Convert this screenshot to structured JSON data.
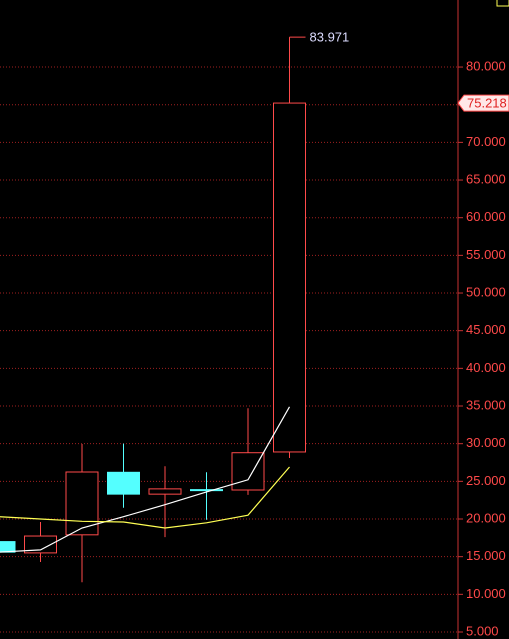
{
  "chart_data": {
    "type": "candlestick",
    "categories": [
      null,
      null,
      null,
      null,
      null,
      null,
      null,
      null
    ],
    "open": [
      17.0,
      15.5,
      17.9,
      26.2,
      23.3,
      23.9,
      23.85,
      28.9
    ],
    "high": [
      17.0,
      19.6,
      29.95,
      30.0,
      27.0,
      26.2,
      34.7,
      83.971
    ],
    "low": [
      15.6,
      14.3,
      11.6,
      21.5,
      17.6,
      19.9,
      23.2,
      28.1
    ],
    "close": [
      15.6,
      17.74,
      26.24,
      23.3,
      24.0,
      23.85,
      28.8,
      75.218
    ],
    "up_color": "#ff4a4a",
    "down_color": "#54ffff",
    "series": [
      {
        "color": "#ffffff",
        "values": [
          15.6,
          15.9,
          18.8,
          20.3,
          21.9,
          23.6,
          25.2,
          34.9
        ]
      },
      {
        "color": "#ffff54",
        "values": [
          20.3,
          20.0,
          19.7,
          19.6,
          18.8,
          19.5,
          20.5,
          26.9
        ]
      }
    ],
    "ylim": [
      4.07,
      88.9
    ],
    "yticks": [
      {
        "value": 5,
        "label": "5.000"
      },
      {
        "value": 10,
        "label": "10.000"
      },
      {
        "value": 15,
        "label": "15.000"
      },
      {
        "value": 20,
        "label": "20.000"
      },
      {
        "value": 25,
        "label": "25.000"
      },
      {
        "value": 30,
        "label": "30.000"
      },
      {
        "value": 35,
        "label": "35.000"
      },
      {
        "value": 40,
        "label": "40.000"
      },
      {
        "value": 45,
        "label": "45.000"
      },
      {
        "value": 50,
        "label": "50.000"
      },
      {
        "value": 55,
        "label": "55.000"
      },
      {
        "value": 60,
        "label": "60.000"
      },
      {
        "value": 65,
        "label": "65.000"
      },
      {
        "value": 70,
        "label": "70.000"
      },
      {
        "value": 75,
        "label": "75.000"
      },
      {
        "value": 80,
        "label": "80.000"
      }
    ],
    "grid": true
  }
}
